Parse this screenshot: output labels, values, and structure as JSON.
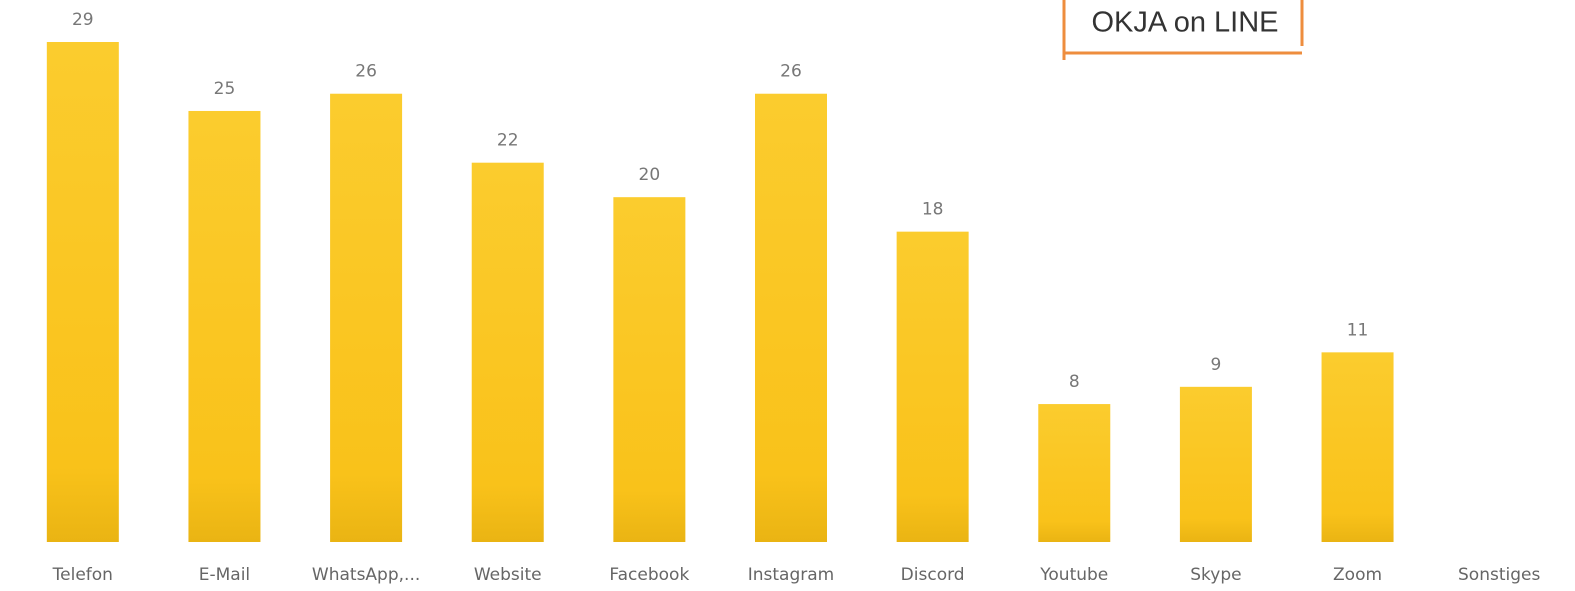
{
  "chart_data": {
    "type": "bar",
    "badge": "OKJA on LINE",
    "categories": [
      "Telefon",
      "E-Mail",
      "WhatsApp,...",
      "Website",
      "Facebook",
      "Instagram",
      "Discord",
      "Youtube",
      "Skype",
      "Zoom",
      "Sonstiges"
    ],
    "values": [
      29,
      25,
      26,
      22,
      20,
      26,
      18,
      8,
      9,
      11,
      null
    ],
    "color": "#f9c21a"
  }
}
